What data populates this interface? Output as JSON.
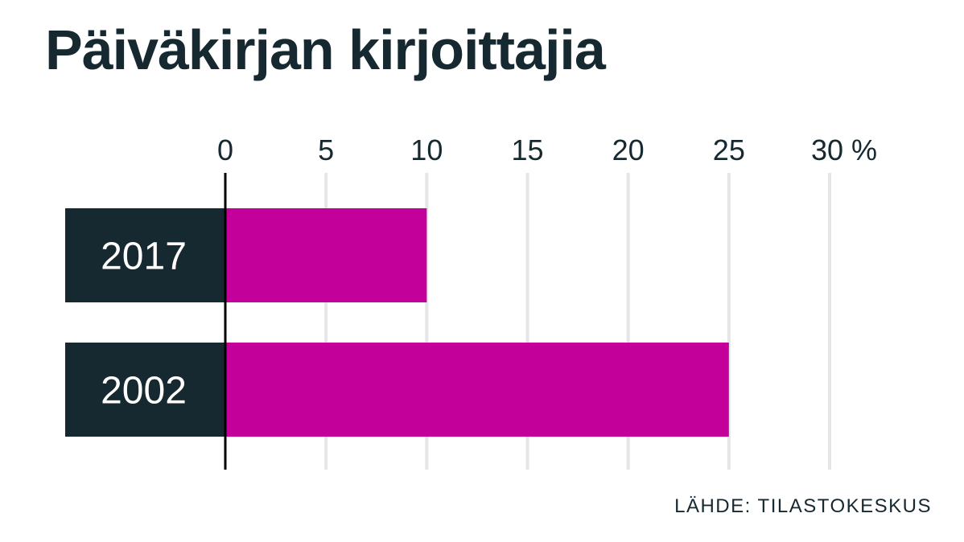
{
  "chart_data": {
    "type": "bar",
    "orientation": "horizontal",
    "title": "Päiväkirjan kirjoittajia",
    "categories": [
      "2017",
      "2002"
    ],
    "values": [
      10,
      25
    ],
    "xlim": [
      0,
      30
    ],
    "xticks": [
      "0",
      "5",
      "10",
      "15",
      "20",
      "25",
      "30 %"
    ],
    "xtick_values": [
      0,
      5,
      10,
      15,
      20,
      25,
      30
    ],
    "grid": true,
    "bar_color": "#c4009a",
    "label_box_color": "#162830",
    "gridline_color": "#e6e6e6",
    "source": "LÄHDE: TILASTOKESKUS"
  }
}
